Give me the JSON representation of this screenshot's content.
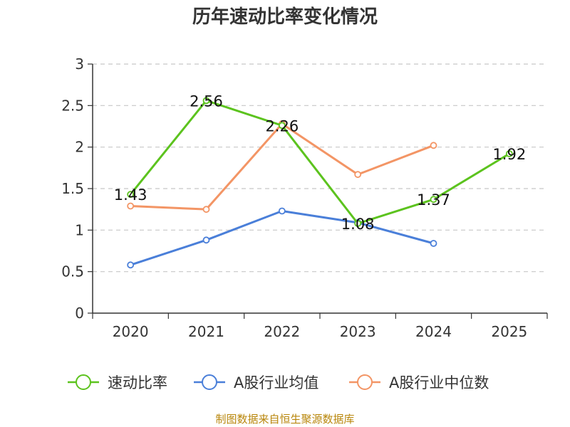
{
  "chart_data": {
    "type": "line",
    "title": "历年速动比率变化情况",
    "categories": [
      "2020",
      "2021",
      "2022",
      "2023",
      "2024",
      "2025"
    ],
    "ylim": [
      0,
      3
    ],
    "yticks": [
      0,
      0.5,
      1,
      1.5,
      2,
      2.5,
      3
    ],
    "grid": true,
    "legend_position": "bottom",
    "series": [
      {
        "name": "速动比率",
        "color": "#5cc31e",
        "values": [
          1.43,
          2.56,
          2.26,
          1.08,
          1.37,
          1.92
        ],
        "labels": [
          "1.43",
          "2.56",
          "2.26",
          "1.08",
          "1.37",
          "1.92"
        ]
      },
      {
        "name": "A股行业均值",
        "color": "#4a7fd9",
        "values": [
          0.58,
          0.88,
          1.23,
          1.09,
          0.84,
          null
        ]
      },
      {
        "name": "A股行业中位数",
        "color": "#f39565",
        "values": [
          1.29,
          1.25,
          2.28,
          1.67,
          2.02,
          null
        ]
      }
    ],
    "source": "制图数据来自恒生聚源数据库"
  }
}
